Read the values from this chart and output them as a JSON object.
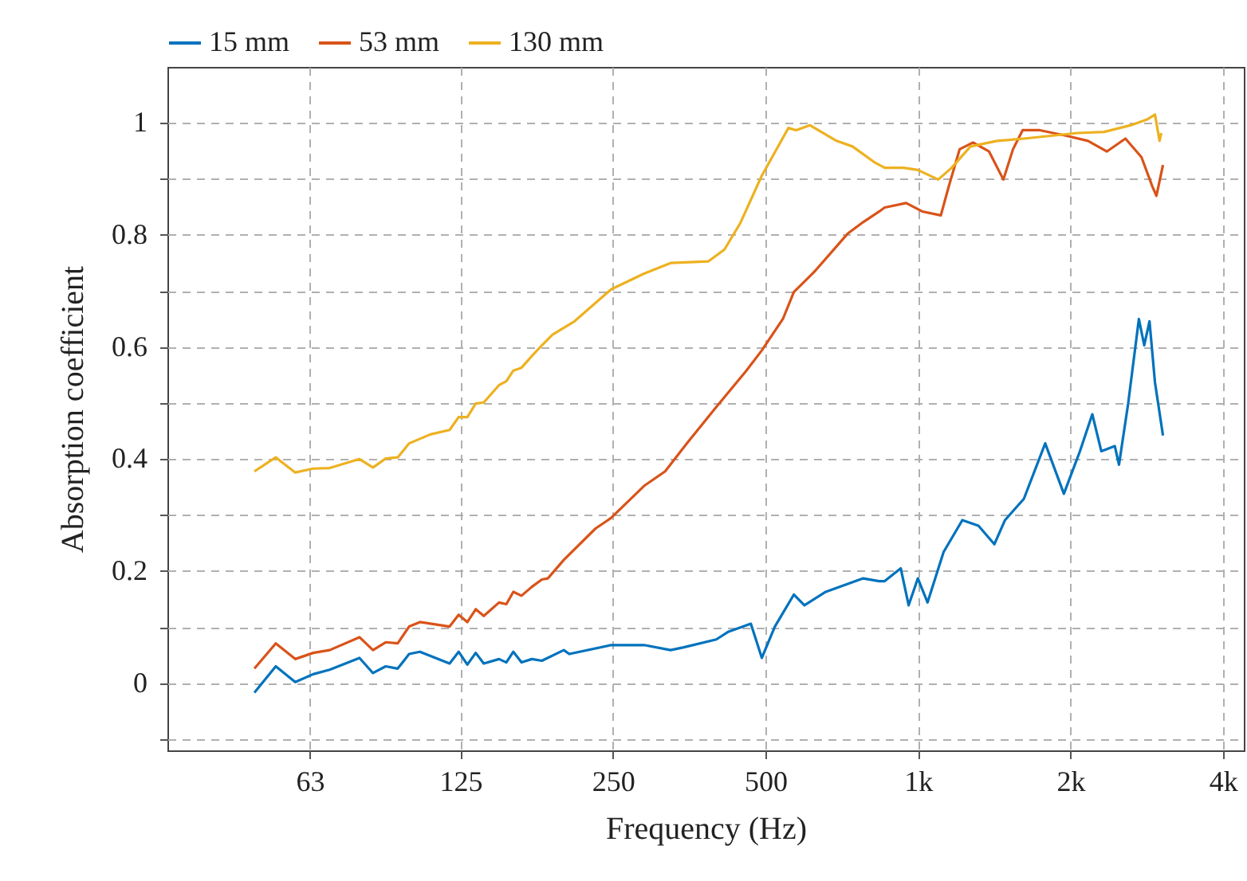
{
  "chart_data": {
    "type": "line",
    "xlabel": "Frequency (Hz)",
    "ylabel": "Absorption coefficient",
    "log": "x",
    "grid": true,
    "legend": "top",
    "xlim": [
      33,
      4400
    ],
    "xticks": [
      63,
      125,
      250,
      500,
      {
        "value": 1000,
        "label": "1k"
      },
      {
        "value": 2000,
        "label": "2k"
      },
      {
        "value": 4000,
        "label": "4k"
      }
    ],
    "ylim": [
      -0.12,
      1.1
    ],
    "yticks": [
      {
        "value": -0.1,
        "label": null
      },
      0,
      {
        "value": 0.1,
        "label": null
      },
      0.2,
      {
        "value": 0.3,
        "label": null
      },
      0.4,
      {
        "value": 0.5,
        "label": null
      },
      0.6,
      {
        "value": 0.7,
        "label": null
      },
      0.8,
      {
        "value": 0.9,
        "label": null
      },
      1
    ],
    "series": [
      {
        "name": "15 mm",
        "color": "#0072bd",
        "x": [
          49,
          54,
          59,
          64,
          69,
          79,
          84,
          89,
          94,
          99,
          104,
          119,
          124,
          129,
          134,
          139,
          149,
          154,
          159,
          165,
          173,
          181,
          200,
          205,
          248,
          288,
          325,
          345,
          400,
          423,
          468,
          492,
          522,
          569,
          597,
          658,
          780,
          839,
          860,
          925,
          959,
          1000,
          1045,
          1124,
          1224,
          1317,
          1416,
          1486,
          1619,
          1784,
          1942,
          2089,
          2210,
          2302,
          2448,
          2495,
          2601,
          2731,
          2798,
          2866,
          2938,
          3047
        ],
        "values": [
          -0.017,
          0.03,
          0.002,
          0.016,
          0.024,
          0.045,
          0.018,
          0.03,
          0.026,
          0.052,
          0.056,
          0.035,
          0.056,
          0.033,
          0.054,
          0.035,
          0.043,
          0.037,
          0.056,
          0.037,
          0.043,
          0.04,
          0.059,
          0.052,
          0.068,
          0.068,
          0.059,
          0.064,
          0.078,
          0.092,
          0.106,
          0.045,
          0.101,
          0.158,
          0.139,
          0.163,
          0.187,
          0.182,
          0.182,
          0.205,
          0.139,
          0.187,
          0.144,
          0.234,
          0.291,
          0.281,
          0.248,
          0.291,
          0.329,
          0.428,
          0.338,
          0.414,
          0.48,
          0.414,
          0.423,
          0.39,
          0.499,
          0.65,
          0.603,
          0.646,
          0.537,
          0.442
        ]
      },
      {
        "name": "53 mm",
        "color": "#d95319",
        "x": [
          49,
          54,
          59,
          64,
          69,
          79,
          84,
          89,
          94,
          99,
          104,
          119,
          124,
          129,
          134,
          139,
          149,
          154,
          159,
          165,
          173,
          181,
          186,
          200,
          231,
          248,
          288,
          317,
          350,
          405,
          457,
          492,
          542,
          569,
          627,
          726,
          780,
          839,
          860,
          948,
          1020,
          1110,
          1151,
          1209,
          1285,
          1382,
          1475,
          1541,
          1610,
          1741,
          1967,
          2167,
          2360,
          2569,
          2763,
          2902,
          2958,
          3047
        ],
        "values": [
          0.026,
          0.071,
          0.043,
          0.054,
          0.059,
          0.082,
          0.059,
          0.073,
          0.071,
          0.101,
          0.109,
          0.101,
          0.122,
          0.109,
          0.132,
          0.12,
          0.144,
          0.141,
          0.163,
          0.156,
          0.172,
          0.185,
          0.187,
          0.22,
          0.276,
          0.295,
          0.352,
          0.378,
          0.428,
          0.499,
          0.556,
          0.594,
          0.651,
          0.698,
          0.736,
          0.802,
          0.823,
          0.842,
          0.849,
          0.857,
          0.842,
          0.835,
          0.887,
          0.953,
          0.965,
          0.949,
          0.899,
          0.953,
          0.987,
          0.987,
          0.977,
          0.968,
          0.949,
          0.972,
          0.939,
          0.887,
          0.87,
          0.925
        ]
      },
      {
        "name": "130 mm",
        "color": "#edb120",
        "x": [
          49,
          54,
          59,
          64,
          69,
          79,
          84,
          89,
          94,
          99,
          109,
          119,
          124,
          129,
          134,
          139,
          149,
          154,
          159,
          165,
          173,
          181,
          190,
          210,
          248,
          288,
          325,
          386,
          415,
          446,
          492,
          555,
          575,
          612,
          691,
          743,
          820,
          860,
          937,
          1000,
          1097,
          1166,
          1270,
          1433,
          1619,
          1829,
          2063,
          2331,
          2633,
          2833,
          2938,
          3000,
          3024
        ],
        "values": [
          0.378,
          0.403,
          0.376,
          0.383,
          0.384,
          0.4,
          0.385,
          0.401,
          0.403,
          0.428,
          0.444,
          0.452,
          0.475,
          0.475,
          0.499,
          0.501,
          0.532,
          0.539,
          0.558,
          0.563,
          0.584,
          0.603,
          0.622,
          0.646,
          0.703,
          0.731,
          0.75,
          0.753,
          0.774,
          0.821,
          0.906,
          0.991,
          0.987,
          0.996,
          0.968,
          0.958,
          0.93,
          0.92,
          0.92,
          0.916,
          0.899,
          0.92,
          0.958,
          0.968,
          0.972,
          0.977,
          0.982,
          0.984,
          0.996,
          1.006,
          1.015,
          0.968,
          0.982
        ]
      }
    ]
  }
}
